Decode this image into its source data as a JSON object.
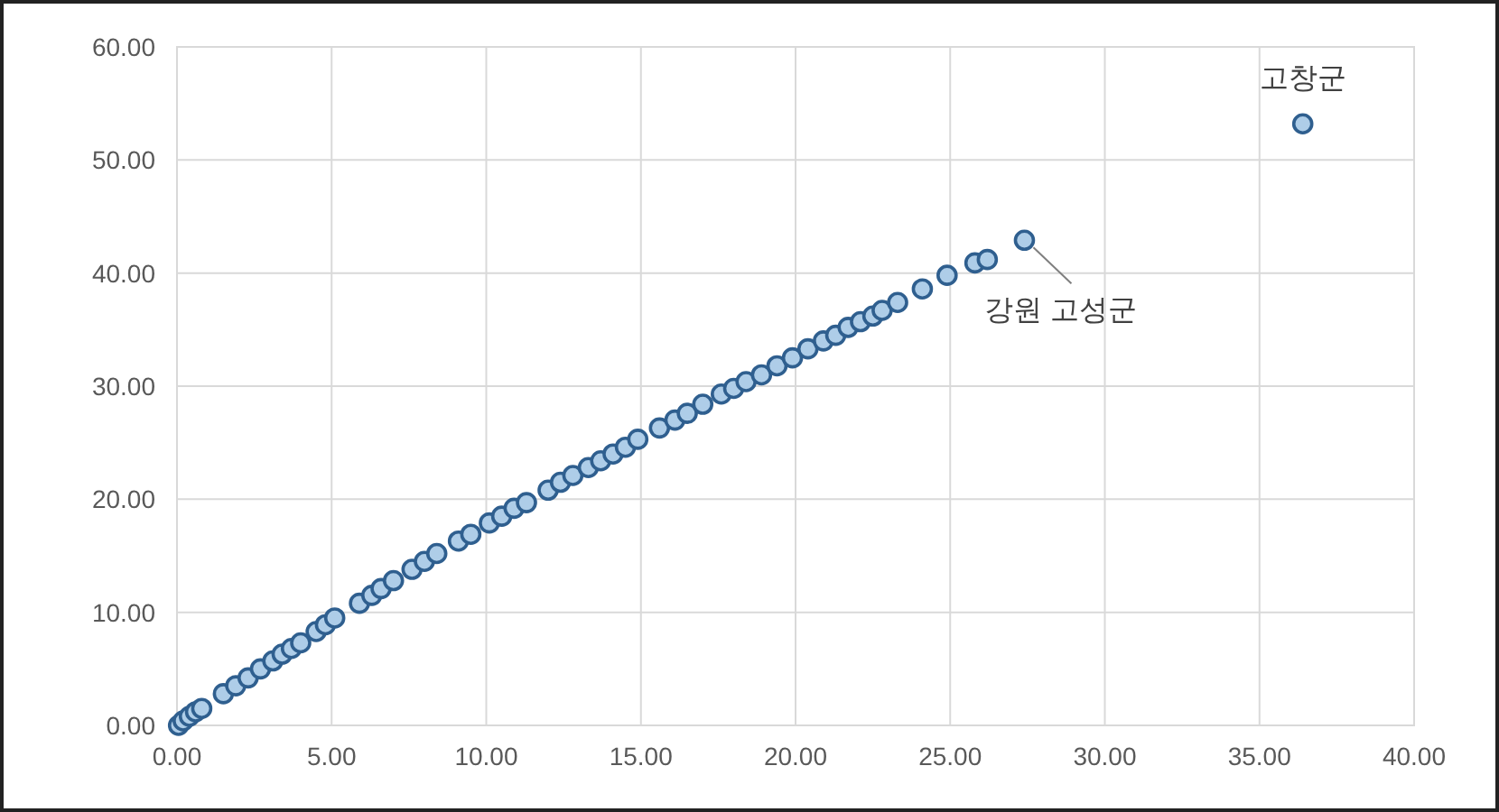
{
  "chart_data": {
    "type": "scatter",
    "color": "#aecde8",
    "marker": "circle",
    "grid": true,
    "xlim": [
      0,
      40
    ],
    "xticks": [
      {
        "value": 0,
        "label": "0.00"
      },
      {
        "value": 5,
        "label": "5.00"
      },
      {
        "value": 10,
        "label": "10.00"
      },
      {
        "value": 15,
        "label": "15.00"
      },
      {
        "value": 20,
        "label": "20.00"
      },
      {
        "value": 25,
        "label": "25.00"
      },
      {
        "value": 30,
        "label": "30.00"
      },
      {
        "value": 35,
        "label": "35.00"
      },
      {
        "value": 40,
        "label": "40.00"
      }
    ],
    "ylim": [
      0,
      60
    ],
    "yticks": [
      {
        "value": 0,
        "label": "0.00"
      },
      {
        "value": 10,
        "label": "10.00"
      },
      {
        "value": 20,
        "label": "20.00"
      },
      {
        "value": 30,
        "label": "30.00"
      },
      {
        "value": 40,
        "label": "40.00"
      },
      {
        "value": 50,
        "label": "50.00"
      },
      {
        "value": 60,
        "label": "60.00"
      }
    ],
    "x": [
      0.05,
      0.2,
      0.4,
      0.6,
      0.8,
      1.5,
      1.9,
      2.3,
      2.7,
      3.1,
      3.4,
      3.7,
      4.0,
      4.5,
      4.8,
      5.1,
      5.9,
      6.3,
      6.6,
      7.0,
      7.6,
      8.0,
      8.4,
      9.1,
      9.5,
      10.1,
      10.5,
      10.9,
      11.3,
      12.0,
      12.4,
      12.8,
      13.3,
      13.7,
      14.1,
      14.5,
      14.9,
      15.6,
      16.1,
      16.5,
      17.0,
      17.6,
      18.0,
      18.4,
      18.9,
      19.4,
      19.9,
      20.4,
      20.9,
      21.3,
      21.7,
      22.1,
      22.5,
      22.8,
      23.3,
      24.1,
      24.9,
      25.8,
      26.2,
      27.4,
      36.4
    ],
    "values": [
      0,
      0.4,
      0.8,
      1.2,
      1.5,
      2.8,
      3.5,
      4.2,
      5,
      5.7,
      6.3,
      6.8,
      7.3,
      8.3,
      8.9,
      9.5,
      10.8,
      11.5,
      12.1,
      12.8,
      13.8,
      14.5,
      15.2,
      16.3,
      16.9,
      17.9,
      18.5,
      19.2,
      19.7,
      20.8,
      21.5,
      22.1,
      22.8,
      23.4,
      24.0,
      24.6,
      25.3,
      26.3,
      27.0,
      27.6,
      28.4,
      29.3,
      29.8,
      30.4,
      31.0,
      31.8,
      32.5,
      33.3,
      34.0,
      34.5,
      35.2,
      35.7,
      36.2,
      36.7,
      37.4,
      38.6,
      39.8,
      40.9,
      41.2,
      42.9,
      53.2
    ],
    "annotations": [
      {
        "text": "강원 고성군",
        "x": 27.4,
        "y": 42.9
      },
      {
        "text": "고창군",
        "x": 36.4,
        "y": 53.2
      }
    ]
  }
}
